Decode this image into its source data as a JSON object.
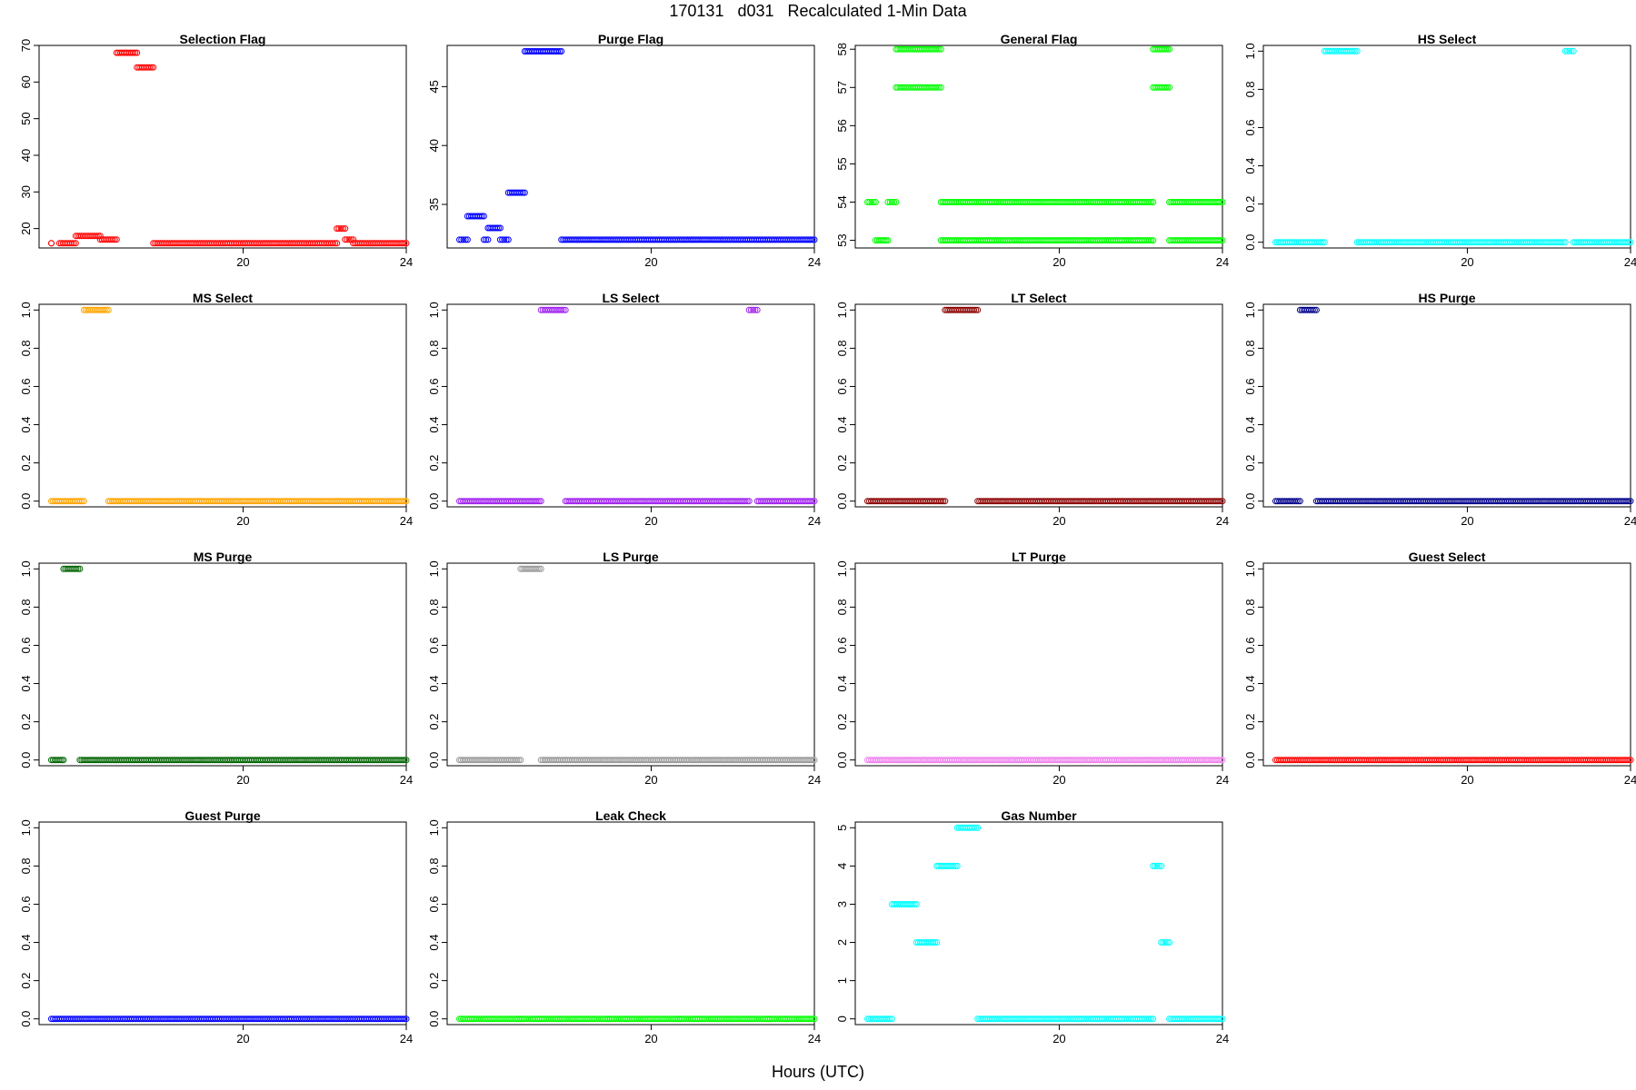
{
  "title": "170131   d031   Recalculated 1-Min Data",
  "xlabel": "Hours (UTC)",
  "chart_data": [
    {
      "type": "scatter",
      "title": "Selection Flag",
      "color": "#ff0000",
      "xlim": [
        15,
        24
      ],
      "ylim": [
        14.7,
        70
      ],
      "yticks": [
        20,
        30,
        40,
        50,
        60,
        70
      ],
      "xticks": [
        20,
        24
      ],
      "segments": [
        {
          "x0": 15.3,
          "x1": 15.3,
          "y": 16
        },
        {
          "x0": 15.5,
          "x1": 15.9,
          "y": 16
        },
        {
          "x0": 15.9,
          "x1": 16.5,
          "y": 18
        },
        {
          "x0": 16.5,
          "x1": 16.9,
          "y": 17
        },
        {
          "x0": 16.9,
          "x1": 17.4,
          "y": 68
        },
        {
          "x0": 17.4,
          "x1": 17.8,
          "y": 64
        },
        {
          "x0": 17.8,
          "x1": 22.3,
          "y": 16
        },
        {
          "x0": 22.3,
          "x1": 22.5,
          "y": 20
        },
        {
          "x0": 22.5,
          "x1": 22.7,
          "y": 17
        },
        {
          "x0": 22.7,
          "x1": 24,
          "y": 16
        }
      ]
    },
    {
      "type": "scatter",
      "title": "Purge Flag",
      "color": "#0000ff",
      "xlim": [
        15,
        24
      ],
      "ylim": [
        31.3,
        48.5
      ],
      "yticks": [
        35,
        40,
        45
      ],
      "xticks": [
        20,
        24
      ],
      "segments": [
        {
          "x0": 15.3,
          "x1": 15.5,
          "y": 32
        },
        {
          "x0": 15.5,
          "x1": 15.9,
          "y": 34
        },
        {
          "x0": 15.9,
          "x1": 16.0,
          "y": 32
        },
        {
          "x0": 16.0,
          "x1": 16.3,
          "y": 33
        },
        {
          "x0": 16.3,
          "x1": 16.5,
          "y": 32
        },
        {
          "x0": 16.5,
          "x1": 16.9,
          "y": 36
        },
        {
          "x0": 16.9,
          "x1": 17.8,
          "y": 48
        },
        {
          "x0": 17.8,
          "x1": 24,
          "y": 32
        }
      ]
    },
    {
      "type": "scatter",
      "title": "General Flag",
      "color": "#00ff00",
      "xlim": [
        15,
        24
      ],
      "ylim": [
        52.8,
        58.1
      ],
      "yticks": [
        53,
        54,
        55,
        56,
        57,
        58
      ],
      "xticks": [
        20,
        24
      ],
      "segments": [
        {
          "x0": 15.3,
          "x1": 15.5,
          "y": 54
        },
        {
          "x0": 15.5,
          "x1": 15.8,
          "y": 53
        },
        {
          "x0": 15.8,
          "x1": 16.0,
          "y": 54
        },
        {
          "x0": 16.0,
          "x1": 17.1,
          "y": 58
        },
        {
          "x0": 16.0,
          "x1": 17.1,
          "y": 57
        },
        {
          "x0": 17.1,
          "x1": 22.3,
          "y": 54
        },
        {
          "x0": 17.1,
          "x1": 22.3,
          "y": 53
        },
        {
          "x0": 22.3,
          "x1": 22.7,
          "y": 58
        },
        {
          "x0": 22.3,
          "x1": 22.7,
          "y": 57
        },
        {
          "x0": 22.7,
          "x1": 24,
          "y": 54
        },
        {
          "x0": 22.7,
          "x1": 24,
          "y": 53
        }
      ]
    },
    {
      "type": "scatter",
      "title": "HS Select",
      "color": "#00ffff",
      "xlim": [
        15,
        24
      ],
      "ylim": [
        -0.03,
        1.03
      ],
      "yticks": [
        0.0,
        0.2,
        0.4,
        0.6,
        0.8,
        1.0
      ],
      "xticks": [
        20,
        24
      ],
      "segments": [
        {
          "x0": 15.3,
          "x1": 16.5,
          "y": 0
        },
        {
          "x0": 16.5,
          "x1": 17.3,
          "y": 1
        },
        {
          "x0": 17.3,
          "x1": 22.4,
          "y": 0
        },
        {
          "x0": 22.4,
          "x1": 22.6,
          "y": 1
        },
        {
          "x0": 22.6,
          "x1": 24,
          "y": 0
        }
      ]
    },
    {
      "type": "scatter",
      "title": "MS Select",
      "color": "#ffa500",
      "xlim": [
        15,
        24
      ],
      "ylim": [
        -0.03,
        1.03
      ],
      "yticks": [
        0.0,
        0.2,
        0.4,
        0.6,
        0.8,
        1.0
      ],
      "xticks": [
        20,
        24
      ],
      "segments": [
        {
          "x0": 15.3,
          "x1": 16.1,
          "y": 0
        },
        {
          "x0": 16.1,
          "x1": 16.7,
          "y": 1
        },
        {
          "x0": 16.7,
          "x1": 24,
          "y": 0
        }
      ]
    },
    {
      "type": "scatter",
      "title": "LS Select",
      "color": "#a020f0",
      "xlim": [
        15,
        24
      ],
      "ylim": [
        -0.03,
        1.03
      ],
      "yticks": [
        0.0,
        0.2,
        0.4,
        0.6,
        0.8,
        1.0
      ],
      "xticks": [
        20,
        24
      ],
      "segments": [
        {
          "x0": 15.3,
          "x1": 17.3,
          "y": 0
        },
        {
          "x0": 17.3,
          "x1": 17.9,
          "y": 1
        },
        {
          "x0": 17.9,
          "x1": 22.4,
          "y": 0
        },
        {
          "x0": 22.4,
          "x1": 22.6,
          "y": 1
        },
        {
          "x0": 22.6,
          "x1": 24,
          "y": 0
        }
      ]
    },
    {
      "type": "scatter",
      "title": "LT Select",
      "color": "#8b0000",
      "xlim": [
        15,
        24
      ],
      "ylim": [
        -0.03,
        1.03
      ],
      "yticks": [
        0.0,
        0.2,
        0.4,
        0.6,
        0.8,
        1.0
      ],
      "xticks": [
        20,
        24
      ],
      "segments": [
        {
          "x0": 15.3,
          "x1": 17.2,
          "y": 0
        },
        {
          "x0": 17.2,
          "x1": 18.0,
          "y": 1
        },
        {
          "x0": 18.0,
          "x1": 24,
          "y": 0
        }
      ]
    },
    {
      "type": "scatter",
      "title": "HS Purge",
      "color": "#00008b",
      "xlim": [
        15,
        24
      ],
      "ylim": [
        -0.03,
        1.03
      ],
      "yticks": [
        0.0,
        0.2,
        0.4,
        0.6,
        0.8,
        1.0
      ],
      "xticks": [
        20,
        24
      ],
      "segments": [
        {
          "x0": 15.3,
          "x1": 15.9,
          "y": 0
        },
        {
          "x0": 15.9,
          "x1": 16.3,
          "y": 1
        },
        {
          "x0": 16.3,
          "x1": 24,
          "y": 0
        }
      ]
    },
    {
      "type": "scatter",
      "title": "MS Purge",
      "color": "#006400",
      "xlim": [
        15,
        24
      ],
      "ylim": [
        -0.03,
        1.03
      ],
      "yticks": [
        0.0,
        0.2,
        0.4,
        0.6,
        0.8,
        1.0
      ],
      "xticks": [
        20,
        24
      ],
      "segments": [
        {
          "x0": 15.3,
          "x1": 15.6,
          "y": 0
        },
        {
          "x0": 15.6,
          "x1": 16.0,
          "y": 1
        },
        {
          "x0": 16.0,
          "x1": 24,
          "y": 0
        }
      ]
    },
    {
      "type": "scatter",
      "title": "LS Purge",
      "color": "#999999",
      "xlim": [
        15,
        24
      ],
      "ylim": [
        -0.03,
        1.03
      ],
      "yticks": [
        0.0,
        0.2,
        0.4,
        0.6,
        0.8,
        1.0
      ],
      "xticks": [
        20,
        24
      ],
      "segments": [
        {
          "x0": 15.3,
          "x1": 16.8,
          "y": 0
        },
        {
          "x0": 16.8,
          "x1": 17.3,
          "y": 1
        },
        {
          "x0": 17.3,
          "x1": 24,
          "y": 0
        }
      ]
    },
    {
      "type": "scatter",
      "title": "LT Purge",
      "color": "#ee82ee",
      "xlim": [
        15,
        24
      ],
      "ylim": [
        -0.03,
        1.03
      ],
      "yticks": [
        0.0,
        0.2,
        0.4,
        0.6,
        0.8,
        1.0
      ],
      "xticks": [
        20,
        24
      ],
      "segments": [
        {
          "x0": 15.3,
          "x1": 24,
          "y": 0
        }
      ]
    },
    {
      "type": "scatter",
      "title": "Guest Select",
      "color": "#ff0000",
      "xlim": [
        15,
        24
      ],
      "ylim": [
        -0.03,
        1.03
      ],
      "yticks": [
        0.0,
        0.2,
        0.4,
        0.6,
        0.8,
        1.0
      ],
      "xticks": [
        20,
        24
      ],
      "segments": [
        {
          "x0": 15.3,
          "x1": 24,
          "y": 0
        }
      ]
    },
    {
      "type": "scatter",
      "title": "Guest Purge",
      "color": "#0000ff",
      "xlim": [
        15,
        24
      ],
      "ylim": [
        -0.03,
        1.03
      ],
      "yticks": [
        0.0,
        0.2,
        0.4,
        0.6,
        0.8,
        1.0
      ],
      "xticks": [
        20,
        24
      ],
      "segments": [
        {
          "x0": 15.3,
          "x1": 24,
          "y": 0
        }
      ]
    },
    {
      "type": "scatter",
      "title": "Leak Check",
      "color": "#00ff00",
      "xlim": [
        15,
        24
      ],
      "ylim": [
        -0.03,
        1.03
      ],
      "yticks": [
        0.0,
        0.2,
        0.4,
        0.6,
        0.8,
        1.0
      ],
      "xticks": [
        20,
        24
      ],
      "segments": [
        {
          "x0": 15.3,
          "x1": 24,
          "y": 0
        }
      ]
    },
    {
      "type": "scatter",
      "title": "Gas Number",
      "color": "#00ffff",
      "xlim": [
        15,
        24
      ],
      "ylim": [
        -0.15,
        5.15
      ],
      "yticks": [
        0,
        1,
        2,
        3,
        4,
        5
      ],
      "xticks": [
        20,
        24
      ],
      "segments": [
        {
          "x0": 15.3,
          "x1": 15.9,
          "y": 0
        },
        {
          "x0": 15.9,
          "x1": 16.5,
          "y": 3
        },
        {
          "x0": 16.5,
          "x1": 17.0,
          "y": 2
        },
        {
          "x0": 17.0,
          "x1": 17.5,
          "y": 4
        },
        {
          "x0": 17.5,
          "x1": 18.0,
          "y": 5
        },
        {
          "x0": 18.0,
          "x1": 22.3,
          "y": 0
        },
        {
          "x0": 22.3,
          "x1": 22.5,
          "y": 4
        },
        {
          "x0": 22.5,
          "x1": 22.7,
          "y": 2
        },
        {
          "x0": 22.7,
          "x1": 24,
          "y": 0
        }
      ]
    }
  ]
}
